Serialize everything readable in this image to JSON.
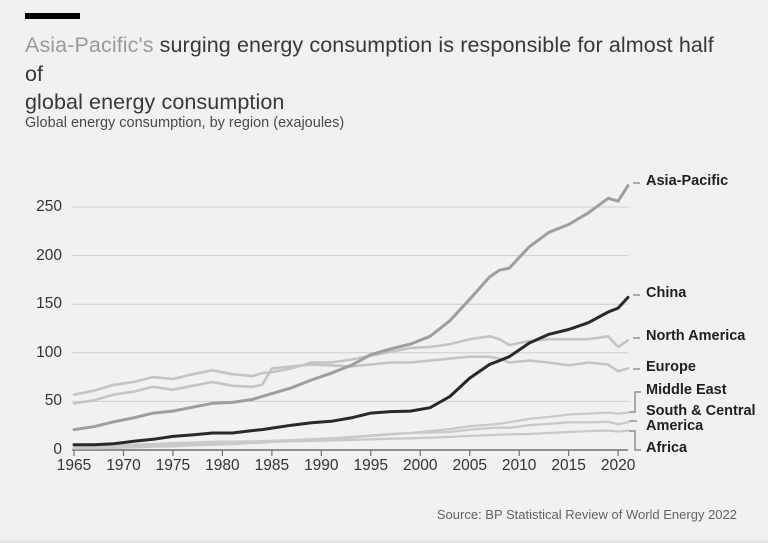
{
  "header": {
    "title_highlight": "Asia-Pacific's",
    "title_rest_line1": " surging energy consumption is responsible for almost half of",
    "title_line2": "global energy consumption",
    "subtitle": "Global energy consumption, by region (exajoules)"
  },
  "footer": {
    "source": "Source: BP Statistical Review of World Energy 2022"
  },
  "chart_data": {
    "type": "line",
    "title": "Asia-Pacific's surging energy consumption is responsible for almost half of global energy consumption",
    "subtitle": "Global energy consumption, by region (exajoules)",
    "units": "exajoules",
    "xlabel": "",
    "ylabel": "exajoules",
    "xlim": [
      1965,
      2021
    ],
    "ylim": [
      0,
      280
    ],
    "grid": "horizontal",
    "legend_position": "right-end-labels",
    "yticks": [
      0,
      50,
      100,
      150,
      200,
      250
    ],
    "xticks": [
      1965,
      1970,
      1975,
      1980,
      1985,
      1990,
      1995,
      2000,
      2005,
      2010,
      2015,
      2020
    ],
    "x": [
      1965,
      1967,
      1969,
      1971,
      1973,
      1975,
      1977,
      1979,
      1981,
      1983,
      1984,
      1985,
      1987,
      1989,
      1991,
      1993,
      1995,
      1997,
      1999,
      2001,
      2003,
      2005,
      2007,
      2008,
      2009,
      2011,
      2013,
      2015,
      2017,
      2019,
      2020,
      2021
    ],
    "series": [
      {
        "name": "North America",
        "color": "#c4c4c4",
        "width": 2.6,
        "values": [
          57,
          61,
          67,
          70,
          75,
          73,
          78,
          82,
          78,
          76,
          79,
          80,
          84,
          90,
          90,
          93,
          97,
          101,
          105,
          106,
          109,
          114,
          117,
          114,
          108,
          112,
          114,
          114,
          114,
          117,
          106,
          113
        ]
      },
      {
        "name": "Europe",
        "color": "#c4c4c4",
        "width": 2.6,
        "values": [
          48,
          51,
          57,
          60,
          65,
          62,
          66,
          70,
          66,
          65,
          67,
          84,
          86,
          88,
          87,
          86,
          88,
          90,
          90,
          92,
          94,
          96,
          96,
          94,
          90,
          92,
          90,
          87,
          90,
          88,
          81,
          84
        ]
      },
      {
        "name": "Middle East",
        "color": "#c9c9c9",
        "width": 2.3,
        "values": [
          1.5,
          1.8,
          2.2,
          2.8,
          3.5,
          3.8,
          4.8,
          5.5,
          6,
          7.5,
          8,
          8.5,
          9.5,
          11,
          12,
          13.5,
          14.5,
          16,
          17.5,
          19.5,
          21.5,
          24.5,
          26,
          27,
          28.5,
          32,
          34,
          36.5,
          37.5,
          38.5,
          37.5,
          38.5
        ]
      },
      {
        "name": "South & Central America",
        "color": "#c9c9c9",
        "width": 2.3,
        "values": [
          4,
          4.3,
          4.7,
          5.5,
          6.2,
          7,
          7.6,
          8.4,
          8.6,
          8.8,
          9.2,
          9.5,
          10.2,
          11,
          11.5,
          12.8,
          15,
          16.5,
          17.5,
          18,
          18.5,
          21,
          22.5,
          23,
          22.8,
          25.5,
          27,
          28.5,
          28.5,
          29,
          26.5,
          28.5
        ]
      },
      {
        "name": "Africa",
        "color": "#c9c9c9",
        "width": 2.3,
        "values": [
          2.8,
          3,
          3.4,
          4,
          4.4,
          4.8,
          5.4,
          6,
          6.3,
          7.2,
          7.6,
          8.5,
          9,
          9.5,
          9.8,
          10.3,
          11,
          11.6,
          12,
          12.8,
          13.5,
          14.5,
          15.3,
          15.7,
          16,
          16.5,
          17.5,
          18.5,
          19.5,
          20,
          19,
          20
        ]
      },
      {
        "name": "Asia-Pacific",
        "color": "#9e9e9e",
        "width": 3,
        "values": [
          21,
          24,
          29,
          33,
          38,
          40,
          44,
          48,
          49,
          52,
          55,
          58,
          64,
          72,
          79,
          87,
          98,
          104,
          109,
          117,
          133,
          155,
          178,
          185,
          187,
          209,
          224,
          232,
          244,
          259,
          256,
          272
        ]
      },
      {
        "name": "China",
        "color": "#292929",
        "width": 3,
        "values": [
          5.5,
          5.5,
          6.5,
          9,
          11,
          14,
          15.5,
          17.5,
          17.5,
          20,
          21,
          22.5,
          25.5,
          28,
          29.5,
          33,
          38,
          39.5,
          40,
          43.5,
          55,
          74,
          88,
          92,
          96,
          110,
          119,
          124,
          131,
          142,
          146,
          157
        ]
      }
    ],
    "colors": {
      "background": "#f1f1ef",
      "gridline": "#cdcdcd",
      "axis": "#707070",
      "tick_text": "#333333",
      "label_connector": "#8c8c8c"
    }
  }
}
